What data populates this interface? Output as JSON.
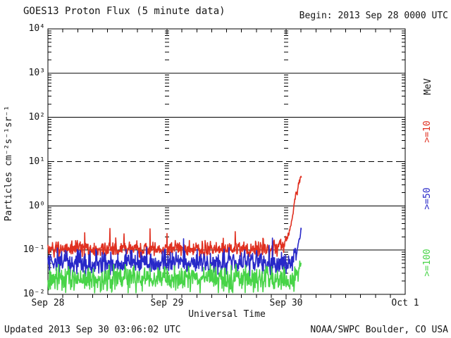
{
  "header": {
    "title": "GOES13 Proton Flux (5 minute data)",
    "begin": "Begin: 2013 Sep 28 0000 UTC"
  },
  "footer": {
    "updated": "Updated 2013 Sep 30 03:06:02 UTC",
    "source": "NOAA/SWPC Boulder, CO USA"
  },
  "chart_data": {
    "type": "line",
    "title": "GOES13 Proton Flux (5 minute data)",
    "begin": "Begin: 2013 Sep 28 0000 UTC",
    "xlabel": "Universal Time",
    "ylabel": "Particles cm⁻²s⁻¹sr⁻¹",
    "legend_title": "MeV",
    "y_scale": "log",
    "ylim": [
      0.01,
      10000
    ],
    "y_tick_labels": [
      "10⁴",
      "10³",
      "10²",
      "10¹",
      "10⁰",
      "10⁻¹",
      "10⁻²"
    ],
    "x_tick_labels": [
      "Sep 28",
      "Sep 29",
      "Sep 30",
      "Oct 1"
    ],
    "x_range_days": [
      0,
      3
    ],
    "x_minor_tick_hours": 3,
    "solid_gridlines": [
      1000,
      100,
      1,
      0.1
    ],
    "dashed_threshold_line": 10,
    "sample_minutes": 5,
    "data_end_day": 2.129,
    "series": [
      {
        "name": ">=10",
        "color": "#e03020",
        "baseline": 0.105,
        "noise_log_sigma": 0.085,
        "spike_prob": 0.03,
        "spike_log": 0.3,
        "floor": 0.062,
        "envelope": [
          [
            0,
            0.105
          ],
          [
            1.92,
            0.105
          ],
          [
            1.98,
            0.14
          ],
          [
            2.01,
            0.18
          ],
          [
            2.03,
            0.28
          ],
          [
            2.05,
            0.5
          ],
          [
            2.065,
            0.95
          ],
          [
            2.075,
            1.55
          ],
          [
            2.085,
            2.0
          ],
          [
            2.092,
            1.75
          ],
          [
            2.1,
            2.6
          ],
          [
            2.112,
            3.6
          ],
          [
            2.121,
            4.5
          ],
          [
            2.129,
            4.1
          ]
        ]
      },
      {
        "name": ">=50",
        "color": "#2828c8",
        "baseline": 0.052,
        "noise_log_sigma": 0.13,
        "spike_prob": 0.015,
        "spike_log": 0.25,
        "floor": 0.014,
        "envelope": [
          [
            0,
            0.052
          ],
          [
            2.02,
            0.052
          ],
          [
            2.06,
            0.065
          ],
          [
            2.09,
            0.1
          ],
          [
            2.105,
            0.14
          ],
          [
            2.118,
            0.22
          ],
          [
            2.126,
            0.3
          ],
          [
            2.129,
            0.32
          ]
        ]
      },
      {
        "name": ">=100",
        "color": "#48d448",
        "baseline": 0.0224,
        "noise_log_sigma": 0.14,
        "spike_prob": 0,
        "spike_log": 0,
        "floor": 0.0108,
        "envelope": [
          [
            0,
            0.0224
          ],
          [
            2.05,
            0.023
          ],
          [
            2.09,
            0.027
          ],
          [
            2.11,
            0.033
          ],
          [
            2.122,
            0.045
          ],
          [
            2.129,
            0.058
          ]
        ]
      }
    ]
  }
}
